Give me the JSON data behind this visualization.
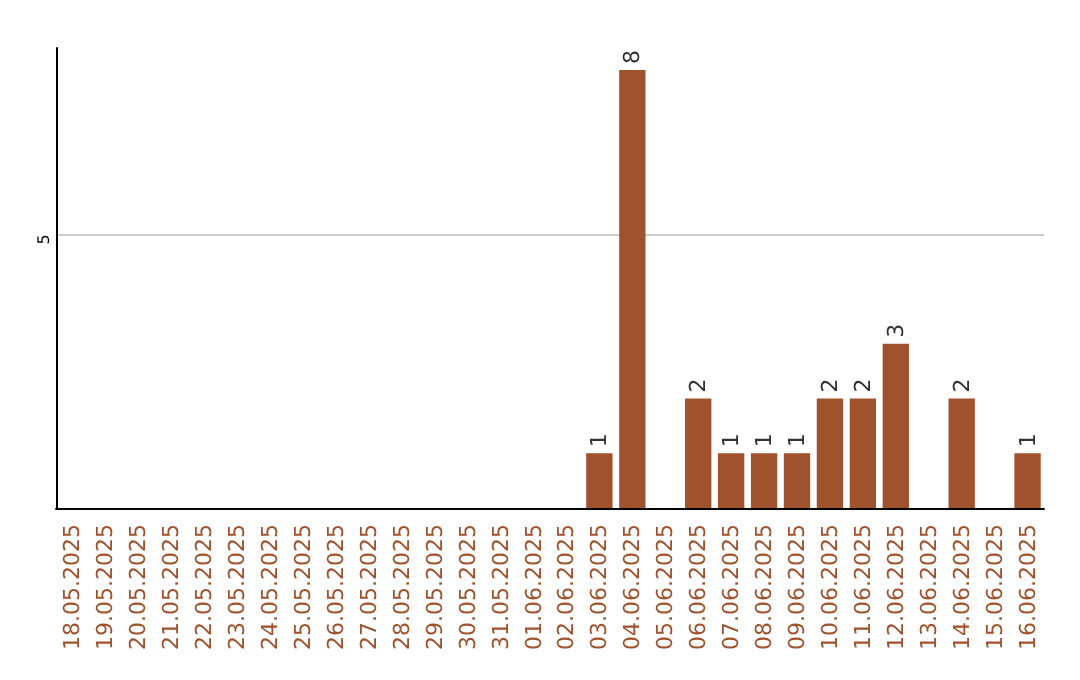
{
  "chart_data": {
    "type": "bar",
    "categories": [
      "18.05.2025",
      "19.05.2025",
      "20.05.2025",
      "21.05.2025",
      "22.05.2025",
      "23.05.2025",
      "24.05.2025",
      "25.05.2025",
      "26.05.2025",
      "27.05.2025",
      "28.05.2025",
      "29.05.2025",
      "30.05.2025",
      "31.05.2025",
      "01.06.2025",
      "02.06.2025",
      "03.06.2025",
      "04.06.2025",
      "05.06.2025",
      "06.06.2025",
      "07.06.2025",
      "08.06.2025",
      "09.06.2025",
      "10.06.2025",
      "11.06.2025",
      "12.06.2025",
      "13.06.2025",
      "14.06.2025",
      "15.06.2025",
      "16.06.2025"
    ],
    "values": [
      null,
      null,
      null,
      null,
      null,
      null,
      null,
      null,
      null,
      null,
      null,
      null,
      null,
      null,
      null,
      null,
      1,
      8,
      null,
      2,
      1,
      1,
      1,
      2,
      2,
      3,
      null,
      2,
      null,
      1
    ],
    "data_labels": true,
    "color": "#a0522d",
    "ylim": [
      0,
      8.4
    ],
    "ref_lines": [
      {
        "axis": "y",
        "value": 5,
        "label": "5",
        "color": "#cccccc"
      }
    ]
  }
}
